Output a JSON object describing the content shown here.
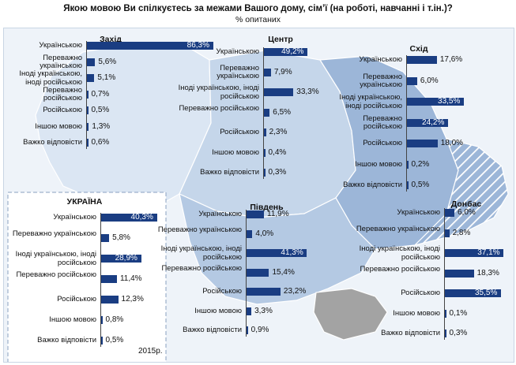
{
  "title": "Якою мовою Ви спілкуєтесь за межами Вашого дому, сім’ї (на роботі, навчанні і т.ін.)?",
  "subtitle": "% опитаних",
  "year_label": "2015р.",
  "colors": {
    "bar": "#1a3d82",
    "map_west": "#dbe6f3",
    "map_center": "#c5d6ea",
    "map_east": "#9cb6d8",
    "map_south": "#b4c9e3",
    "map_crimea": "#a3a3a3",
    "hatch": "#ffffff"
  },
  "chart_data": [
    {
      "type": "bar",
      "title": "Захід",
      "categories": [
        "Українською",
        "Переважно українською",
        "Іноді українською, іноді російською",
        "Переважно російською",
        "Російською",
        "Іншою мовою",
        "Важко відповісти"
      ],
      "values": [
        86.3,
        5.6,
        5.1,
        0.7,
        0.5,
        1.3,
        0.6
      ],
      "value_labels": [
        "86,3%",
        "5,6%",
        "5,1%",
        "0,7%",
        "0,5%",
        "1,3%",
        "0,6%"
      ]
    },
    {
      "type": "bar",
      "title": "Центр",
      "categories": [
        "Українською",
        "Переважно українською",
        "Іноді українською, іноді російською",
        "Переважно російською",
        "Російською",
        "Іншою мовою",
        "Важко відповісти"
      ],
      "values": [
        49.2,
        7.9,
        33.3,
        6.5,
        2.3,
        0.4,
        0.3
      ],
      "value_labels": [
        "49,2%",
        "7,9%",
        "33,3%",
        "6,5%",
        "2,3%",
        "0,4%",
        "0,3%"
      ]
    },
    {
      "type": "bar",
      "title": "Схід",
      "categories": [
        "Українською",
        "Переважно українською",
        "Іноді українською, іноді російською",
        "Переважно російською",
        "Російською",
        "Іншою мовою",
        "Важко відповісти"
      ],
      "values": [
        17.6,
        6.0,
        33.5,
        24.2,
        18.0,
        0.2,
        0.5
      ],
      "value_labels": [
        "17,6%",
        "6,0%",
        "33,5%",
        "24,2%",
        "18,0%",
        "0,2%",
        "0,5%"
      ]
    },
    {
      "type": "bar",
      "title": "УКРАЇНА",
      "categories": [
        "Українською",
        "Переважно українською",
        "Іноді українською, іноді російською",
        "Переважно російською",
        "Російською",
        "Іншою мовою",
        "Важко відповісти"
      ],
      "values": [
        40.3,
        5.8,
        28.9,
        11.4,
        12.3,
        0.8,
        0.5
      ],
      "value_labels": [
        "40,3%",
        "5,8%",
        "28,9%",
        "11,4%",
        "12,3%",
        "0,8%",
        "0,5%"
      ]
    },
    {
      "type": "bar",
      "title": "Південь",
      "categories": [
        "Українською",
        "Переважно українською",
        "Іноді українською, іноді російською",
        "Переважно російською",
        "Російською",
        "Іншою мовою",
        "Важко відповісти"
      ],
      "values": [
        11.9,
        4.0,
        41.3,
        15.4,
        23.2,
        3.3,
        0.9
      ],
      "value_labels": [
        "11,9%",
        "4,0%",
        "41,3%",
        "15,4%",
        "23,2%",
        "3,3%",
        "0,9%"
      ]
    },
    {
      "type": "bar",
      "title": "Донбас",
      "categories": [
        "Українською",
        "Переважно українською",
        "Іноді українською, іноді російською",
        "Переважно російською",
        "Російською",
        "Іншою мовою",
        "Важко відповісти"
      ],
      "values": [
        6.0,
        2.8,
        37.1,
        18.3,
        35.5,
        0.1,
        0.3
      ],
      "value_labels": [
        "6,0%",
        "2,8%",
        "37,1%",
        "18,3%",
        "35,5%",
        "0,1%",
        "0,3%"
      ]
    }
  ]
}
